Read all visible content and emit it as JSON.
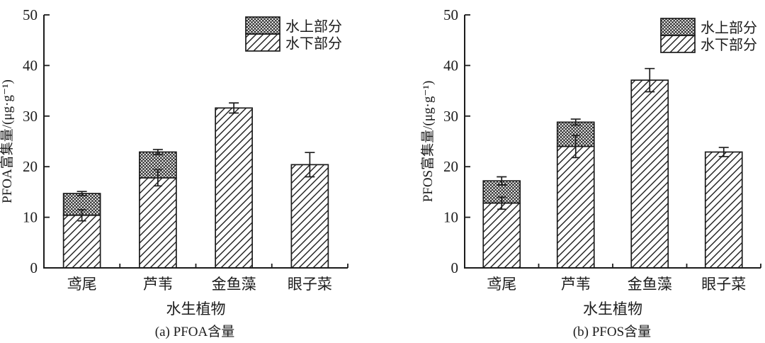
{
  "figure": {
    "background": "#ffffff",
    "ink_color": "#1c1c1c"
  },
  "legend": {
    "items": [
      {
        "label": "水上部分",
        "pattern": "crosshatch"
      },
      {
        "label": "水下部分",
        "pattern": "diagonal"
      }
    ],
    "position": "top-right"
  },
  "chart_data": [
    {
      "type": "bar",
      "variant": "stacked",
      "panel_label": "(a) PFOA含量",
      "xlabel": "水生植物",
      "ylabel": "PFOA富集量/(μg·g⁻¹)",
      "ylim": [
        0,
        50
      ],
      "yticks": [
        0,
        10,
        20,
        30,
        40,
        50
      ],
      "grid": false,
      "categories": [
        "鸢尾",
        "芦苇",
        "金鱼藻",
        "眼子菜"
      ],
      "series": [
        {
          "name": "水下部分",
          "pattern": "diagonal",
          "values": [
            10.4,
            17.8,
            31.6,
            20.4
          ],
          "errors": [
            1.1,
            1.6,
            1.0,
            2.4
          ]
        },
        {
          "name": "水上部分",
          "pattern": "crosshatch",
          "values": [
            4.3,
            5.1,
            0,
            0
          ],
          "errors": [
            0.4,
            0.5,
            null,
            null
          ]
        }
      ],
      "totals": [
        14.7,
        22.9,
        31.6,
        20.4
      ]
    },
    {
      "type": "bar",
      "variant": "stacked",
      "panel_label": "(b) PFOS含量",
      "xlabel": "水生植物",
      "ylabel": "PFOS富集量/(μg·g⁻¹)",
      "ylim": [
        0,
        50
      ],
      "yticks": [
        0,
        10,
        20,
        30,
        40,
        50
      ],
      "grid": false,
      "categories": [
        "鸢尾",
        "芦苇",
        "金鱼藻",
        "眼子菜"
      ],
      "series": [
        {
          "name": "水下部分",
          "pattern": "diagonal",
          "values": [
            12.8,
            24.0,
            37.1,
            22.9
          ],
          "errors": [
            1.2,
            2.2,
            2.3,
            0.9
          ]
        },
        {
          "name": "水上部分",
          "pattern": "crosshatch",
          "values": [
            4.4,
            4.8,
            0,
            0
          ],
          "errors": [
            0.8,
            0.6,
            null,
            null
          ]
        }
      ],
      "totals": [
        17.2,
        28.8,
        37.1,
        22.9
      ]
    }
  ]
}
